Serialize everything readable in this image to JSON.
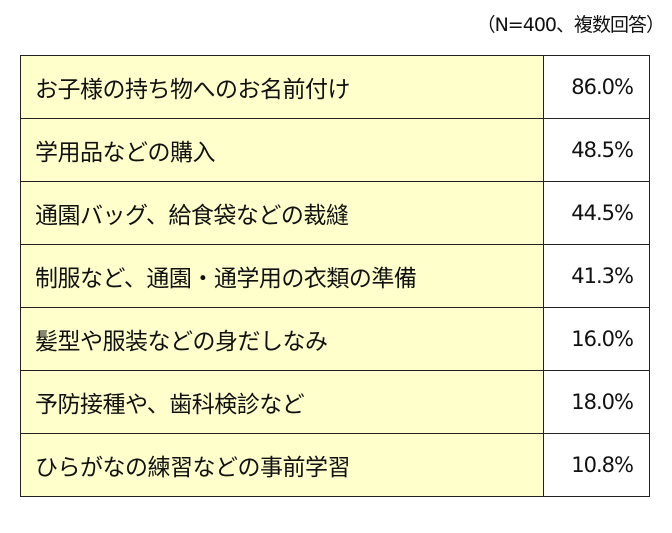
{
  "note": "（N=400、複数回答）",
  "rows": [
    {
      "label": "お子様の持ち物へのお名前付け",
      "value": "86.0%"
    },
    {
      "label": "学用品などの購入",
      "value": "48.5%"
    },
    {
      "label": "通園バッグ、給食袋などの裁縫",
      "value": "44.5%"
    },
    {
      "label": "制服など、通園・通学用の衣類の準備",
      "value": "41.3%"
    },
    {
      "label": "髪型や服装などの身だしなみ",
      "value": "16.0%"
    },
    {
      "label": "予防接種や、歯科検診など",
      "value": "18.0%"
    },
    {
      "label": "ひらがなの練習などの事前学習",
      "value": "10.8%"
    }
  ],
  "colors": {
    "label_bg": "#ffffcc",
    "value_bg": "#ffffff",
    "border": "#222222"
  }
}
